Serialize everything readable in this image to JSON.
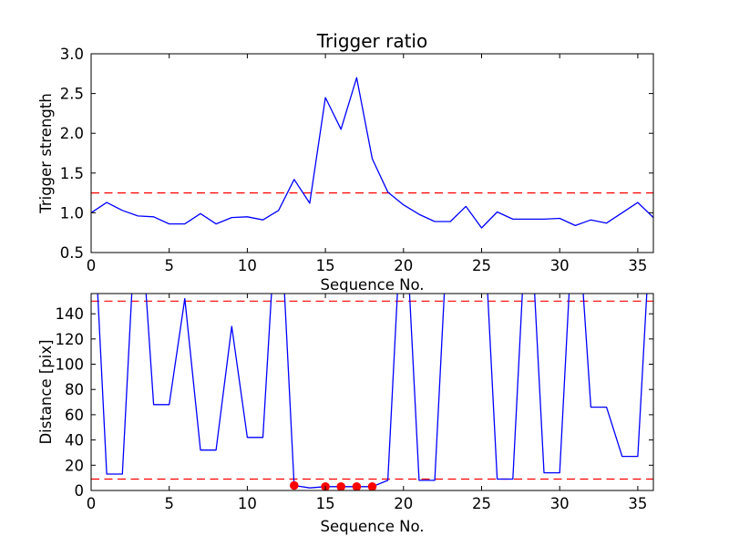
{
  "figure": {
    "background": "#ffffff",
    "line_color": "#0000ff",
    "threshold_color": "#ff0000",
    "marker_color": "#ff0000",
    "axes_color": "#000000"
  },
  "chart_data": [
    {
      "type": "line",
      "title": "Trigger ratio",
      "xlabel": "Sequence No.",
      "ylabel": "Trigger strength",
      "xlim": [
        0,
        36
      ],
      "ylim": [
        0.5,
        3.0
      ],
      "grid": false,
      "legend": null,
      "xticks": [
        0,
        5,
        10,
        15,
        20,
        25,
        30,
        35
      ],
      "xtick_labels": [
        "0",
        "5",
        "10",
        "15",
        "20",
        "25",
        "30",
        "35"
      ],
      "yticks": [
        0.5,
        1.0,
        1.5,
        2.0,
        2.5,
        3.0
      ],
      "ytick_labels": [
        "0.5",
        "1.0",
        "1.5",
        "2.0",
        "2.5",
        "3.0"
      ],
      "thresholds": [
        1.25
      ],
      "x": [
        0,
        1,
        2,
        3,
        4,
        5,
        6,
        7,
        8,
        9,
        10,
        11,
        12,
        13,
        14,
        15,
        16,
        17,
        18,
        19,
        20,
        21,
        22,
        23,
        24,
        25,
        26,
        27,
        28,
        29,
        30,
        31,
        32,
        33,
        34,
        35,
        36
      ],
      "y": [
        1.0,
        1.13,
        1.03,
        0.96,
        0.95,
        0.86,
        0.86,
        0.99,
        0.86,
        0.94,
        0.95,
        0.91,
        1.03,
        1.42,
        1.12,
        2.45,
        2.05,
        2.7,
        1.68,
        1.26,
        1.1,
        0.98,
        0.89,
        0.89,
        1.08,
        0.81,
        1.01,
        0.92,
        0.92,
        0.92,
        0.93,
        0.84,
        0.91,
        0.87,
        1.0,
        1.13,
        0.94
      ]
    },
    {
      "type": "line",
      "title": "",
      "xlabel": "Sequence No.",
      "ylabel": "Distance [pix]",
      "xlim": [
        0,
        36
      ],
      "ylim": [
        0,
        156
      ],
      "grid": false,
      "legend": null,
      "xticks": [
        0,
        5,
        10,
        15,
        20,
        25,
        30,
        35
      ],
      "xtick_labels": [
        "0",
        "5",
        "10",
        "15",
        "20",
        "25",
        "30",
        "35"
      ],
      "yticks": [
        0,
        20,
        40,
        60,
        80,
        100,
        120,
        140
      ],
      "ytick_labels": [
        "0",
        "20",
        "40",
        "60",
        "80",
        "100",
        "120",
        "140"
      ],
      "thresholds": [
        150,
        9
      ],
      "x": [
        0,
        1,
        2,
        3,
        4,
        5,
        6,
        7,
        8,
        9,
        10,
        11,
        12,
        13,
        14,
        15,
        16,
        17,
        18,
        19,
        20,
        21,
        22,
        23,
        24,
        25,
        26,
        27,
        28,
        29,
        30,
        31,
        32,
        33,
        34,
        35,
        36
      ],
      "y": [
        260,
        13,
        13,
        250,
        68,
        68,
        152,
        32,
        32,
        130,
        42,
        42,
        250,
        4,
        2,
        3,
        3,
        3,
        3,
        8,
        250,
        8,
        8,
        250,
        250,
        250,
        9,
        9,
        250,
        14,
        14,
        250,
        66,
        66,
        27,
        27,
        250
      ],
      "markers": {
        "x": [
          13,
          15,
          16,
          17,
          18
        ],
        "y": [
          4,
          3,
          3,
          3,
          3
        ]
      }
    }
  ]
}
